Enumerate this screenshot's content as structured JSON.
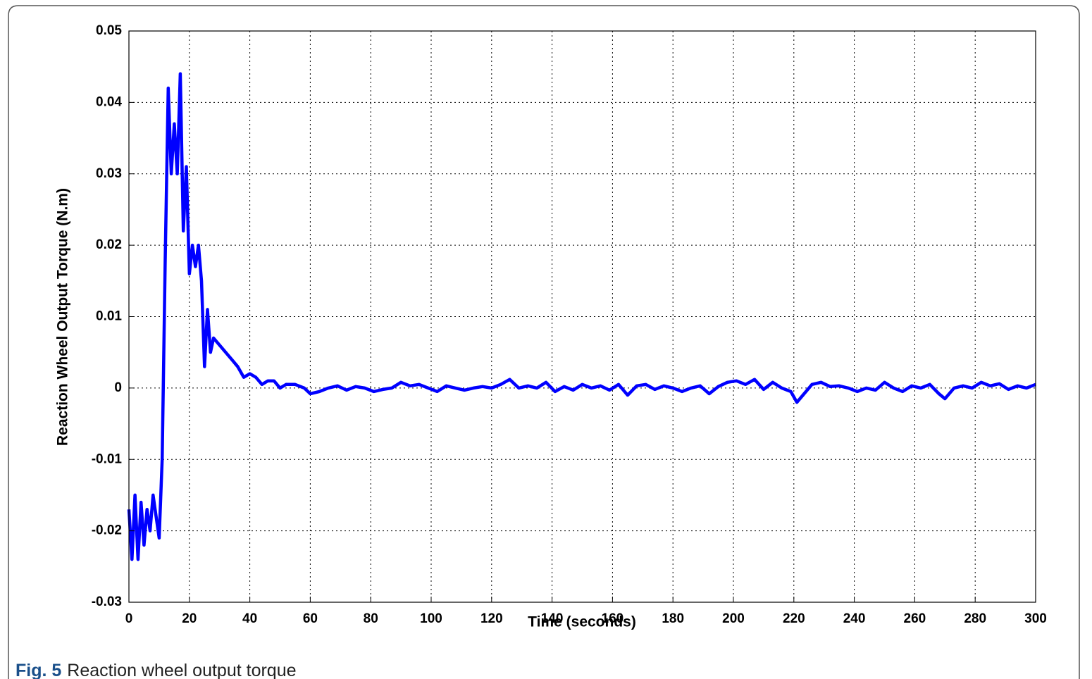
{
  "chart_data": {
    "type": "line",
    "xlabel": "Time (seconds)",
    "ylabel": "Reaction Wheel Output Torque (N.m)",
    "caption_label": "Fig. 5",
    "caption": "Reaction wheel output torque",
    "x": [
      0,
      1,
      2,
      3,
      4,
      5,
      6,
      7,
      8,
      9,
      10,
      11,
      12,
      13,
      14,
      15,
      16,
      17,
      18,
      19,
      20,
      21,
      22,
      23,
      24,
      25,
      26,
      27,
      28,
      30,
      32,
      34,
      36,
      38,
      40,
      42,
      44,
      46,
      48,
      50,
      52,
      55,
      58,
      60,
      63,
      66,
      69,
      72,
      75,
      78,
      81,
      84,
      87,
      90,
      93,
      96,
      99,
      102,
      105,
      108,
      111,
      114,
      117,
      120,
      123,
      126,
      129,
      132,
      135,
      138,
      141,
      144,
      147,
      150,
      153,
      156,
      159,
      162,
      165,
      168,
      171,
      174,
      177,
      180,
      183,
      186,
      189,
      192,
      195,
      198,
      201,
      204,
      207,
      210,
      213,
      216,
      219,
      221,
      223,
      226,
      229,
      232,
      235,
      238,
      241,
      244,
      247,
      250,
      253,
      256,
      259,
      262,
      265,
      268,
      270,
      273,
      276,
      279,
      282,
      285,
      288,
      291,
      294,
      297,
      300
    ],
    "series": [
      {
        "color": "#0000ff",
        "values": [
          -0.017,
          -0.024,
          -0.015,
          -0.024,
          -0.016,
          -0.022,
          -0.017,
          -0.02,
          -0.015,
          -0.018,
          -0.021,
          -0.01,
          0.018,
          0.042,
          0.03,
          0.037,
          0.03,
          0.044,
          0.022,
          0.031,
          0.016,
          0.02,
          0.017,
          0.02,
          0.015,
          0.003,
          0.011,
          0.005,
          0.007,
          0.006,
          0.005,
          0.004,
          0.003,
          0.0015,
          0.002,
          0.0015,
          0.0005,
          0.001,
          0.001,
          0.0,
          0.0005,
          0.0005,
          0.0,
          -0.0008,
          -0.0005,
          0.0,
          0.0003,
          -0.0003,
          0.0002,
          0.0,
          -0.0005,
          -0.0002,
          0.0,
          0.0008,
          0.0003,
          0.0005,
          0.0,
          -0.0005,
          0.0003,
          0.0,
          -0.0003,
          0.0,
          0.0002,
          0.0,
          0.0005,
          0.0012,
          0.0,
          0.0003,
          0.0,
          0.0008,
          -0.0005,
          0.0002,
          -0.0003,
          0.0005,
          0.0,
          0.0003,
          -0.0003,
          0.0005,
          -0.001,
          0.0003,
          0.0005,
          -0.0002,
          0.0003,
          0.0,
          -0.0005,
          0.0,
          0.0003,
          -0.0008,
          0.0002,
          0.0008,
          0.001,
          0.0005,
          0.0012,
          -0.0002,
          0.0008,
          0.0,
          -0.0005,
          -0.002,
          -0.001,
          0.0005,
          0.0008,
          0.0002,
          0.0003,
          0.0,
          -0.0005,
          0.0,
          -0.0003,
          0.0008,
          0.0,
          -0.0005,
          0.0003,
          0.0,
          0.0005,
          -0.0008,
          -0.0015,
          0.0,
          0.0003,
          0.0,
          0.0008,
          0.0003,
          0.0006,
          -0.0002,
          0.0003,
          0.0,
          0.0005
        ]
      }
    ],
    "xlim": [
      0,
      300
    ],
    "ylim": [
      -0.03,
      0.05
    ],
    "xticks": [
      0,
      20,
      40,
      60,
      80,
      100,
      120,
      140,
      160,
      180,
      200,
      220,
      240,
      260,
      280,
      300
    ],
    "yticks": [
      -0.03,
      -0.02,
      -0.01,
      0,
      0.01,
      0.02,
      0.03,
      0.04,
      0.05
    ],
    "grid": true
  }
}
